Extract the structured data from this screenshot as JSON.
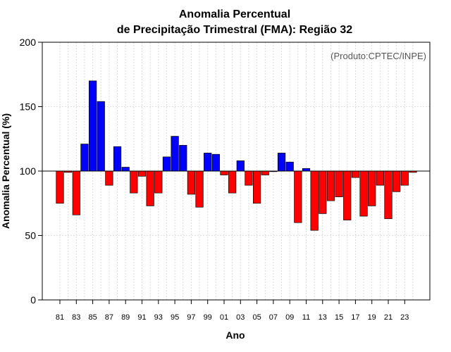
{
  "chart_data": {
    "type": "bar",
    "title_lines": [
      "Anomalia Percentual",
      "de Precipitação Trimestral (FMA): Região 32"
    ],
    "xlabel": "Ano",
    "ylabel": "Anomalia Percentual (%)",
    "watermark": "(Produto:CPTEC/INPE)",
    "baseline": 100,
    "ylim": [
      0,
      200
    ],
    "yticks": [
      0,
      50,
      100,
      150,
      200
    ],
    "grid": true,
    "colors": {
      "above": "#0000ff",
      "below": "#ff0000",
      "outline": "#000000",
      "grid": "#d3d3d3"
    },
    "categories": [
      "81",
      "82",
      "83",
      "84",
      "85",
      "86",
      "87",
      "88",
      "89",
      "90",
      "91",
      "92",
      "93",
      "94",
      "95",
      "96",
      "97",
      "98",
      "99",
      "00",
      "01",
      "02",
      "03",
      "04",
      "05",
      "06",
      "07",
      "08",
      "09",
      "10",
      "11",
      "12",
      "13",
      "14",
      "15",
      "16",
      "17",
      "18",
      "19",
      "20",
      "21",
      "22",
      "23",
      "24"
    ],
    "xtick_labels": [
      "81",
      "83",
      "85",
      "87",
      "89",
      "91",
      "93",
      "95",
      "97",
      "99",
      "01",
      "03",
      "05",
      "07",
      "09",
      "11",
      "13",
      "15",
      "17",
      "19",
      "21",
      "23"
    ],
    "values": [
      75,
      99,
      66,
      121,
      170,
      154,
      89,
      119,
      103,
      83,
      96,
      73,
      83,
      111,
      127,
      120,
      82,
      72,
      114,
      113,
      97,
      83,
      108,
      89,
      75,
      97,
      100,
      114,
      107,
      60,
      102,
      54,
      67,
      77,
      80,
      62,
      95,
      65,
      73,
      89,
      63,
      84,
      89,
      99
    ]
  }
}
